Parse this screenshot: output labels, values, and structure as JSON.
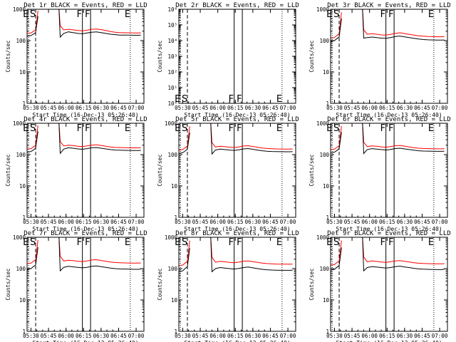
{
  "figure": {
    "y_axis_label": "Counts/sec",
    "x_axis_label": "Start Time (16-Dec-13 05:26:40)",
    "x_tick_labels": [
      "05:30",
      "05:45",
      "06:00",
      "06:15",
      "06:30",
      "06:45",
      "07:00"
    ],
    "colors": {
      "events": "#000000",
      "lld": "#ff0000"
    }
  },
  "chart_data": [
    {
      "type": "line",
      "title": "Det 1r BLACK = Events, RED = LLD",
      "yscale": "log",
      "ylim": [
        1,
        1000
      ],
      "xlim": [
        "05:26:40",
        "07:06:40"
      ],
      "y_tick_labels": [
        "1",
        "10",
        "100",
        "1000"
      ],
      "x": [
        "05:27",
        "05:30",
        "05:32",
        "05:34",
        "05:36",
        "05:38",
        "05:52",
        "05:54",
        "05:55",
        "05:58",
        "06:02",
        "06:06",
        "06:10",
        "06:14",
        "06:18",
        "06:22",
        "06:26",
        "06:30",
        "06:34",
        "06:38",
        "06:42",
        "06:46",
        "06:50",
        "06:54",
        "06:58",
        "07:02",
        "07:04"
      ],
      "series": [
        {
          "name": "Events",
          "values": [
            140,
            145,
            160,
            180,
            600,
            null,
            null,
            1000,
            130,
            170,
            190,
            180,
            170,
            165,
            175,
            185,
            190,
            180,
            170,
            160,
            155,
            150,
            150,
            150,
            148,
            148,
            150
          ]
        },
        {
          "name": "LLD",
          "values": [
            170,
            175,
            195,
            220,
            900,
            null,
            null,
            1000,
            300,
            220,
            230,
            220,
            210,
            205,
            215,
            230,
            235,
            225,
            210,
            195,
            185,
            180,
            178,
            178,
            175,
            175,
            178
          ]
        }
      ],
      "markers": [
        {
          "label": "E",
          "x": "05:28"
        },
        {
          "label": "S",
          "x": "05:34"
        },
        {
          "label": "F",
          "x": "06:14"
        },
        {
          "label": "F",
          "x": "06:21"
        },
        {
          "label": "E",
          "x": "06:55"
        }
      ]
    },
    {
      "type": "line",
      "title": "Det 2r BLACK = Events, RED = LLD",
      "yscale": "log",
      "ylim": [
        1,
        1000000
      ],
      "xlim": [
        "05:26:40",
        "07:06:40"
      ],
      "y_tick_labels": [
        "10⁰",
        "10¹",
        "10²",
        "10³",
        "10⁴",
        "10⁵",
        "10⁶"
      ],
      "x": [],
      "series": [],
      "markers": [
        {
          "label": "E",
          "x": "05:28"
        },
        {
          "label": "S",
          "x": "05:34"
        },
        {
          "label": "F",
          "x": "06:14"
        },
        {
          "label": "F",
          "x": "06:21"
        },
        {
          "label": "E",
          "x": "06:55"
        }
      ]
    },
    {
      "type": "line",
      "title": "Det 3r BLACK = Events, RED = LLD",
      "yscale": "log",
      "ylim": [
        1,
        1000
      ],
      "xlim": [
        "05:26:40",
        "07:06:40"
      ],
      "y_tick_labels": [
        "1",
        "10",
        "100",
        "1000"
      ],
      "x": [
        "05:27",
        "05:30",
        "05:32",
        "05:34",
        "05:36",
        "05:38",
        "05:52",
        "05:54",
        "05:55",
        "05:58",
        "06:02",
        "06:06",
        "06:10",
        "06:14",
        "06:18",
        "06:22",
        "06:26",
        "06:30",
        "06:34",
        "06:38",
        "06:42",
        "06:46",
        "06:50",
        "06:54",
        "06:58",
        "07:02",
        "07:04"
      ],
      "series": [
        {
          "name": "Events",
          "values": [
            95,
            100,
            115,
            130,
            500,
            null,
            null,
            1000,
            120,
            125,
            130,
            125,
            120,
            118,
            125,
            135,
            140,
            132,
            125,
            118,
            112,
            108,
            106,
            105,
            104,
            104,
            105
          ]
        },
        {
          "name": "LLD",
          "values": [
            120,
            125,
            145,
            165,
            800,
            null,
            null,
            1000,
            220,
            160,
            165,
            160,
            152,
            150,
            158,
            170,
            178,
            168,
            158,
            150,
            142,
            138,
            135,
            134,
            133,
            133,
            135
          ]
        }
      ],
      "markers": [
        {
          "label": "E",
          "x": "05:28"
        },
        {
          "label": "S",
          "x": "05:34"
        },
        {
          "label": "F",
          "x": "06:14"
        },
        {
          "label": "F",
          "x": "06:21"
        },
        {
          "label": "E",
          "x": "06:55"
        }
      ]
    },
    {
      "type": "line",
      "title": "Det 4r BLACK = Events, RED = LLD",
      "yscale": "log",
      "ylim": [
        1,
        1000
      ],
      "xlim": [
        "05:26:40",
        "07:06:40"
      ],
      "y_tick_labels": [
        "1",
        "10",
        "100",
        "1000"
      ],
      "x": [
        "05:27",
        "05:30",
        "05:32",
        "05:34",
        "05:36",
        "05:38",
        "05:52",
        "05:54",
        "05:55",
        "05:58",
        "06:02",
        "06:06",
        "06:10",
        "06:14",
        "06:18",
        "06:22",
        "06:26",
        "06:30",
        "06:34",
        "06:38",
        "06:42",
        "06:46",
        "06:50",
        "06:54",
        "06:58",
        "07:02",
        "07:04"
      ],
      "series": [
        {
          "name": "Events",
          "values": [
            120,
            125,
            140,
            160,
            550,
            null,
            null,
            1000,
            110,
            150,
            165,
            160,
            152,
            148,
            155,
            165,
            168,
            160,
            152,
            145,
            140,
            138,
            137,
            136,
            135,
            135,
            137
          ]
        },
        {
          "name": "LLD",
          "values": [
            150,
            155,
            175,
            200,
            850,
            null,
            null,
            1000,
            260,
            190,
            200,
            195,
            185,
            180,
            190,
            200,
            205,
            196,
            185,
            176,
            170,
            168,
            166,
            165,
            164,
            164,
            166
          ]
        }
      ],
      "markers": [
        {
          "label": "E",
          "x": "05:28"
        },
        {
          "label": "S",
          "x": "05:34"
        },
        {
          "label": "F",
          "x": "06:14"
        },
        {
          "label": "F",
          "x": "06:21"
        },
        {
          "label": "E",
          "x": "06:55"
        }
      ]
    },
    {
      "type": "line",
      "title": "Det 5r BLACK = Events, RED = LLD",
      "yscale": "log",
      "ylim": [
        1,
        1000
      ],
      "xlim": [
        "05:26:40",
        "07:06:40"
      ],
      "y_tick_labels": [
        "1",
        "10",
        "100",
        "1000"
      ],
      "x": [
        "05:27",
        "05:30",
        "05:32",
        "05:34",
        "05:36",
        "05:38",
        "05:52",
        "05:54",
        "05:55",
        "05:58",
        "06:02",
        "06:06",
        "06:10",
        "06:14",
        "06:18",
        "06:22",
        "06:26",
        "06:30",
        "06:34",
        "06:38",
        "06:42",
        "06:46",
        "06:50",
        "06:54",
        "06:58",
        "07:02",
        "07:04"
      ],
      "series": [
        {
          "name": "Events",
          "values": [
            110,
            115,
            130,
            150,
            500,
            null,
            null,
            1000,
            105,
            140,
            150,
            145,
            140,
            136,
            142,
            152,
            156,
            148,
            140,
            133,
            128,
            126,
            125,
            124,
            123,
            123,
            125
          ]
        },
        {
          "name": "LLD",
          "values": [
            140,
            145,
            165,
            185,
            800,
            null,
            null,
            1000,
            240,
            175,
            185,
            180,
            172,
            168,
            176,
            188,
            192,
            182,
            172,
            162,
            157,
            154,
            152,
            151,
            150,
            150,
            152
          ]
        }
      ],
      "markers": [
        {
          "label": "E",
          "x": "05:28"
        },
        {
          "label": "S",
          "x": "05:34"
        },
        {
          "label": "F",
          "x": "06:14"
        },
        {
          "label": "F",
          "x": "06:21"
        },
        {
          "label": "E",
          "x": "06:55"
        }
      ]
    },
    {
      "type": "line",
      "title": "Det 6r BLACK = Events, RED = LLD",
      "yscale": "log",
      "ylim": [
        1,
        1000
      ],
      "xlim": [
        "05:26:40",
        "07:06:40"
      ],
      "y_tick_labels": [
        "1",
        "10",
        "100",
        "1000"
      ],
      "x": [
        "05:27",
        "05:30",
        "05:32",
        "05:34",
        "05:36",
        "05:38",
        "05:52",
        "05:54",
        "05:55",
        "05:58",
        "06:02",
        "06:06",
        "06:10",
        "06:14",
        "06:18",
        "06:22",
        "06:26",
        "06:30",
        "06:34",
        "06:38",
        "06:42",
        "06:46",
        "06:50",
        "06:54",
        "06:58",
        "07:02",
        "07:04"
      ],
      "series": [
        {
          "name": "Events",
          "values": [
            115,
            120,
            135,
            155,
            520,
            null,
            null,
            1000,
            108,
            145,
            155,
            150,
            145,
            140,
            146,
            156,
            160,
            152,
            145,
            138,
            133,
            130,
            129,
            128,
            127,
            127,
            129
          ]
        },
        {
          "name": "LLD",
          "values": [
            145,
            150,
            170,
            190,
            820,
            null,
            null,
            1000,
            250,
            180,
            190,
            185,
            177,
            172,
            180,
            192,
            196,
            186,
            176,
            166,
            160,
            157,
            155,
            154,
            153,
            153,
            155
          ]
        }
      ],
      "markers": [
        {
          "label": "E",
          "x": "05:28"
        },
        {
          "label": "S",
          "x": "05:34"
        },
        {
          "label": "F",
          "x": "06:14"
        },
        {
          "label": "F",
          "x": "06:21"
        },
        {
          "label": "E",
          "x": "06:55"
        }
      ]
    },
    {
      "type": "line",
      "title": "Det 7r BLACK = Events, RED = LLD",
      "yscale": "log",
      "ylim": [
        1,
        1000
      ],
      "xlim": [
        "05:26:40",
        "07:06:40"
      ],
      "y_tick_labels": [
        "1",
        "10",
        "100",
        "1000"
      ],
      "x": [
        "05:27",
        "05:30",
        "05:32",
        "05:34",
        "05:36",
        "05:38",
        "05:52",
        "05:54",
        "05:55",
        "05:58",
        "06:02",
        "06:06",
        "06:10",
        "06:14",
        "06:18",
        "06:22",
        "06:26",
        "06:30",
        "06:34",
        "06:38",
        "06:42",
        "06:46",
        "06:50",
        "06:54",
        "06:58",
        "07:02",
        "07:04"
      ],
      "series": [
        {
          "name": "Events",
          "values": [
            95,
            100,
            115,
            130,
            480,
            null,
            null,
            1000,
            85,
            110,
            118,
            114,
            110,
            106,
            110,
            118,
            122,
            115,
            110,
            104,
            100,
            98,
            97,
            96,
            95,
            95,
            97
          ]
        },
        {
          "name": "LLD",
          "values": [
            145,
            150,
            170,
            190,
            820,
            null,
            null,
            1000,
            250,
            175,
            185,
            180,
            172,
            168,
            176,
            188,
            192,
            182,
            172,
            162,
            157,
            154,
            152,
            151,
            150,
            150,
            152
          ]
        }
      ],
      "markers": [
        {
          "label": "E",
          "x": "05:28"
        },
        {
          "label": "S",
          "x": "05:34"
        },
        {
          "label": "F",
          "x": "06:14"
        },
        {
          "label": "F",
          "x": "06:21"
        },
        {
          "label": "E",
          "x": "06:55"
        }
      ]
    },
    {
      "type": "line",
      "title": "Det 8r BLACK = Events, RED = LLD",
      "yscale": "log",
      "ylim": [
        1,
        1000
      ],
      "xlim": [
        "05:26:40",
        "07:06:40"
      ],
      "y_tick_labels": [
        "1",
        "10",
        "100",
        "1000"
      ],
      "x": [
        "05:27",
        "05:30",
        "05:32",
        "05:34",
        "05:36",
        "05:38",
        "05:52",
        "05:54",
        "05:55",
        "05:58",
        "06:02",
        "06:06",
        "06:10",
        "06:14",
        "06:18",
        "06:22",
        "06:26",
        "06:30",
        "06:34",
        "06:38",
        "06:42",
        "06:46",
        "06:50",
        "06:54",
        "06:58",
        "07:02",
        "07:04"
      ],
      "series": [
        {
          "name": "Events",
          "values": [
            80,
            85,
            100,
            115,
            450,
            null,
            null,
            1000,
            80,
            100,
            108,
            104,
            100,
            97,
            101,
            108,
            112,
            106,
            100,
            95,
            92,
            90,
            89,
            88,
            88,
            88,
            89
          ]
        },
        {
          "name": "LLD",
          "values": [
            125,
            130,
            150,
            170,
            780,
            null,
            null,
            1000,
            230,
            160,
            170,
            165,
            158,
            154,
            161,
            172,
            176,
            167,
            158,
            150,
            145,
            142,
            140,
            139,
            138,
            138,
            140
          ]
        }
      ],
      "markers": [
        {
          "label": "E",
          "x": "05:28"
        },
        {
          "label": "S",
          "x": "05:34"
        },
        {
          "label": "F",
          "x": "06:14"
        },
        {
          "label": "F",
          "x": "06:21"
        },
        {
          "label": "E",
          "x": "06:55"
        }
      ]
    },
    {
      "type": "line",
      "title": "Det 9r BLACK = Events, RED = LLD",
      "yscale": "log",
      "ylim": [
        1,
        1000
      ],
      "xlim": [
        "05:26:40",
        "07:06:40"
      ],
      "y_tick_labels": [
        "1",
        "10",
        "100",
        "1000"
      ],
      "x": [
        "05:27",
        "05:30",
        "05:32",
        "05:34",
        "05:36",
        "05:38",
        "05:52",
        "05:54",
        "05:55",
        "05:58",
        "06:02",
        "06:06",
        "06:10",
        "06:14",
        "06:18",
        "06:22",
        "06:26",
        "06:30",
        "06:34",
        "06:38",
        "06:42",
        "06:46",
        "06:50",
        "06:54",
        "06:58",
        "07:02",
        "07:04"
      ],
      "series": [
        {
          "name": "Events",
          "values": [
            90,
            95,
            110,
            125,
            470,
            null,
            null,
            1000,
            85,
            108,
            116,
            112,
            108,
            104,
            108,
            116,
            120,
            113,
            108,
            102,
            98,
            96,
            95,
            94,
            93,
            93,
            95
          ]
        },
        {
          "name": "LLD",
          "values": [
            130,
            135,
            155,
            175,
            790,
            null,
            null,
            1000,
            235,
            165,
            175,
            170,
            162,
            158,
            165,
            176,
            180,
            171,
            162,
            154,
            149,
            146,
            144,
            143,
            142,
            142,
            144
          ]
        }
      ],
      "markers": [
        {
          "label": "E",
          "x": "05:28"
        },
        {
          "label": "S",
          "x": "05:34"
        },
        {
          "label": "F",
          "x": "06:14"
        },
        {
          "label": "F",
          "x": "06:21"
        },
        {
          "label": "E",
          "x": "06:55"
        }
      ]
    }
  ]
}
